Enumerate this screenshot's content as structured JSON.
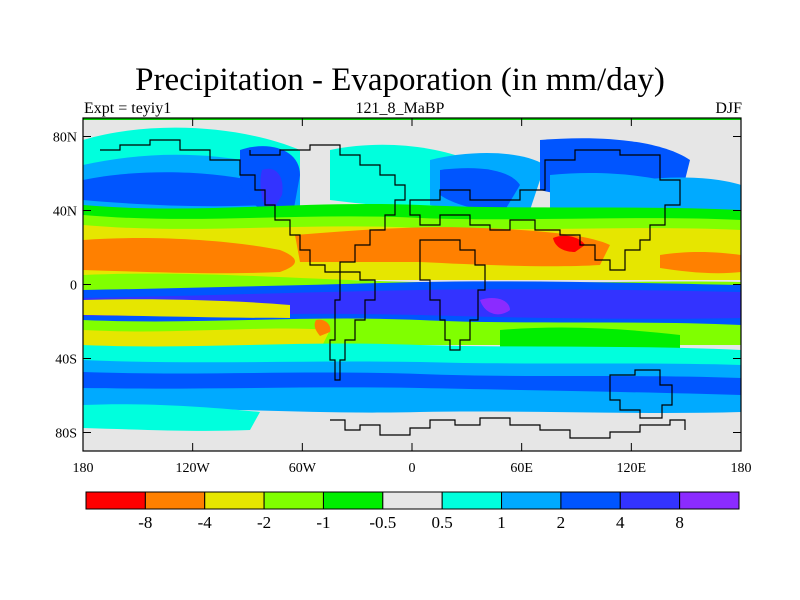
{
  "header": {
    "title": "Precipitation - Evaporation (in mm/day)",
    "left_label": "Expt = teyiy1",
    "center_label": "121_8_MaBP",
    "right_label": "DJF"
  },
  "axes": {
    "x_ticks": [
      {
        "value": -180,
        "label": "180"
      },
      {
        "value": -120,
        "label": "120W"
      },
      {
        "value": -60,
        "label": "60W"
      },
      {
        "value": 0,
        "label": "0"
      },
      {
        "value": 60,
        "label": "60E"
      },
      {
        "value": 120,
        "label": "120E"
      },
      {
        "value": 180,
        "label": "180"
      }
    ],
    "y_ticks": [
      {
        "value": 80,
        "label": "80N"
      },
      {
        "value": 40,
        "label": "40N"
      },
      {
        "value": 0,
        "label": "0"
      },
      {
        "value": -40,
        "label": "40S"
      },
      {
        "value": -80,
        "label": "80S"
      }
    ],
    "xlim": [
      -180,
      180
    ],
    "ylim": [
      -90,
      90
    ]
  },
  "colorbar": {
    "colors": [
      "#ff0000",
      "#ff8000",
      "#e6e600",
      "#80ff00",
      "#00ee00",
      "#e6e6e6",
      "#00ffdd",
      "#00aaff",
      "#0055ff",
      "#3333ff",
      "#8b2bff"
    ],
    "labels": [
      "-8",
      "-4",
      "-2",
      "-1",
      "-0.5",
      "0.5",
      "1",
      "2",
      "4",
      "8"
    ]
  },
  "colors": {
    "frame": "#000000",
    "top_strip": "#00cc00",
    "coast": "#000000"
  }
}
